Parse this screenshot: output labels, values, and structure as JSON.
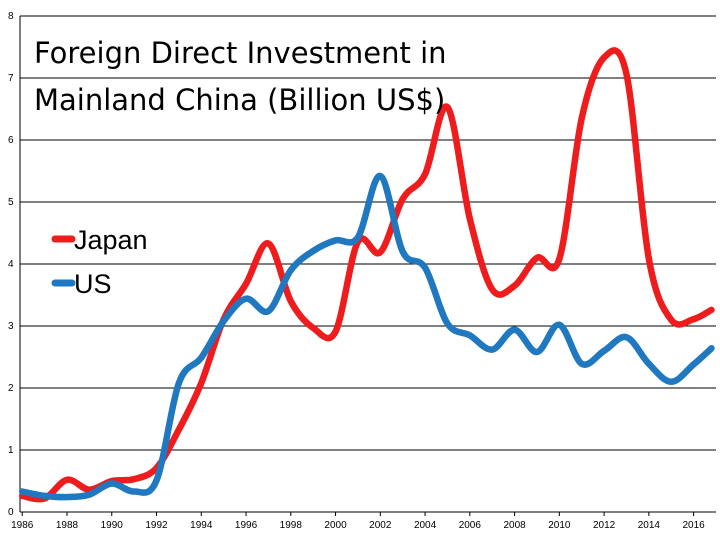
{
  "chart_data": {
    "type": "line",
    "title": [
      "Foreign Direct Investment in",
      "Mainland China (Billion US$)"
    ],
    "xlabel": "",
    "ylabel": "",
    "xlim": [
      1985.9,
      2017.0
    ],
    "ylim": [
      0,
      8
    ],
    "yticks": [
      0,
      1,
      2,
      3,
      4,
      5,
      6,
      7,
      8
    ],
    "xticks": [
      1986,
      1988,
      1990,
      1992,
      1994,
      1996,
      1998,
      2000,
      2002,
      2004,
      2006,
      2008,
      2010,
      2012,
      2014,
      2016
    ],
    "grid": "horizontal",
    "legend_position": "left-middle",
    "series": [
      {
        "name": "Japan",
        "color": "#ee1c1c",
        "x": [
          1986,
          1987,
          1988,
          1989,
          1990,
          1991,
          1992,
          1993,
          1994,
          1995,
          1996,
          1997,
          1998,
          1999,
          2000,
          2001,
          2002,
          2003,
          2004,
          2005,
          2006,
          2007,
          2008,
          2009,
          2010,
          2011,
          2012,
          2013,
          2014,
          2015,
          2016,
          2016.8
        ],
        "values": [
          0.26,
          0.22,
          0.52,
          0.36,
          0.5,
          0.53,
          0.71,
          1.33,
          2.08,
          3.11,
          3.68,
          4.33,
          3.4,
          2.97,
          2.91,
          4.36,
          4.19,
          5.05,
          5.45,
          6.53,
          4.73,
          3.59,
          3.65,
          4.1,
          4.08,
          6.35,
          7.33,
          7.06,
          4.08,
          3.1,
          3.11,
          3.26
        ]
      },
      {
        "name": "US",
        "color": "#1f78c0",
        "x": [
          1986,
          1987,
          1988,
          1989,
          1990,
          1991,
          1992,
          1993,
          1994,
          1995,
          1996,
          1997,
          1998,
          1999,
          2000,
          2001,
          2002,
          2003,
          2004,
          2005,
          2006,
          2007,
          2008,
          2009,
          2010,
          2011,
          2012,
          2013,
          2014,
          2015,
          2016,
          2016.8
        ],
        "values": [
          0.33,
          0.26,
          0.24,
          0.28,
          0.46,
          0.33,
          0.51,
          2.08,
          2.49,
          3.08,
          3.44,
          3.24,
          3.9,
          4.21,
          4.38,
          4.43,
          5.42,
          4.2,
          3.94,
          3.04,
          2.85,
          2.62,
          2.94,
          2.58,
          3.02,
          2.39,
          2.6,
          2.82,
          2.39,
          2.1,
          2.38,
          2.64
        ]
      }
    ]
  }
}
